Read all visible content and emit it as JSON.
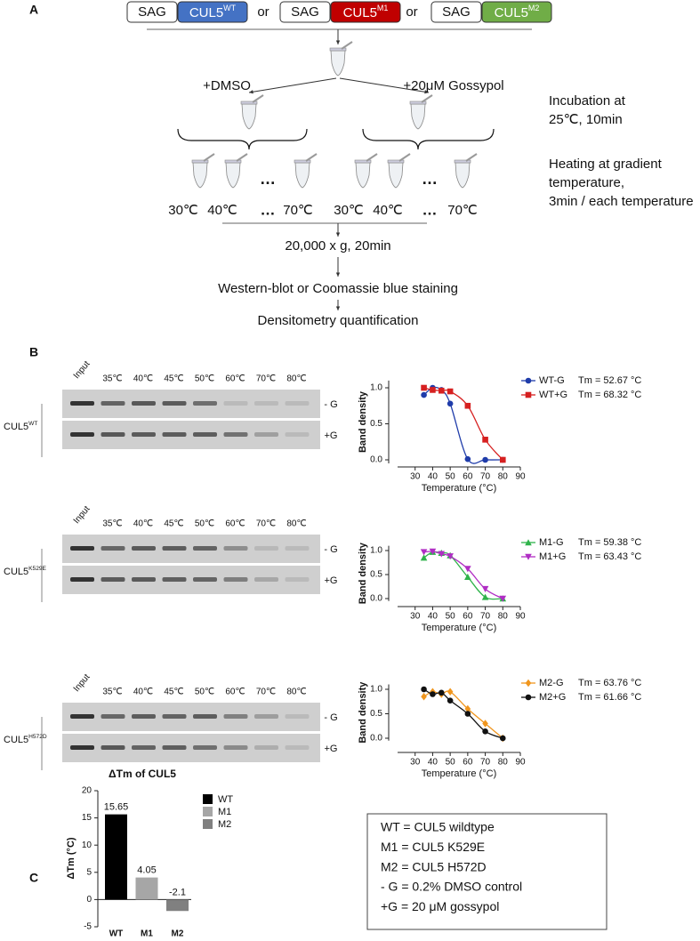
{
  "panel_a": {
    "label": "A",
    "constructs": [
      {
        "tag": "SAG",
        "name": "CUL5",
        "variant": "WT",
        "color": "#4472c4"
      },
      {
        "tag": "SAG",
        "name": "CUL5",
        "variant": "M1",
        "color": "#c00000"
      },
      {
        "tag": "SAG",
        "name": "CUL5",
        "variant": "M2",
        "color": "#70ad47"
      }
    ],
    "separators": [
      "or",
      "or"
    ],
    "conditions": [
      "+DMSO",
      "+20μM Gossypol"
    ],
    "tube_gaps": [
      "…",
      "…"
    ],
    "temperatures": [
      [
        "30℃",
        "40℃",
        "…",
        "70℃"
      ],
      [
        "30℃",
        "40℃",
        "…",
        "70℃"
      ]
    ],
    "steps": [
      "20,000 x g, 20min",
      "Western-blot or Coomassie blue staining",
      "Densitometry quantification"
    ],
    "notes": [
      [
        "Incubation at",
        "25℃, 10min"
      ],
      [
        "Heating at gradient",
        "temperature,",
        "3min / each temperature"
      ]
    ]
  },
  "panel_b": {
    "label": "B",
    "gels": [
      {
        "name": "CUL5",
        "variant": "WT",
        "lanes": [
          "Input",
          "35℃",
          "40℃",
          "45℃",
          "50℃",
          "60℃",
          "70℃",
          "80℃"
        ],
        "rows": [
          "- G",
          "+G"
        ]
      },
      {
        "name": "CUL5",
        "variant": "K529E",
        "lanes": [
          "Input",
          "35℃",
          "40℃",
          "45℃",
          "50℃",
          "60℃",
          "70℃",
          "80℃"
        ],
        "rows": [
          "- G",
          "+G"
        ]
      },
      {
        "name": "CUL5",
        "variant": "H572D",
        "lanes": [
          "Input",
          "35℃",
          "40℃",
          "45℃",
          "50℃",
          "60℃",
          "70℃",
          "80℃"
        ],
        "rows": [
          "- G",
          "+G"
        ]
      }
    ]
  },
  "chart_data": [
    {
      "type": "scatter",
      "curve": "smooth",
      "x_label": "Temperature (°C)",
      "y_label": "Band density",
      "xlim": [
        20,
        90
      ],
      "xticks": [
        30,
        40,
        50,
        60,
        70,
        80,
        90
      ],
      "ylim": [
        -0.05,
        1.1
      ],
      "yticks": [
        {
          "value": 0,
          "label": "0.0"
        },
        {
          "value": 0.5,
          "label": "0.5"
        },
        {
          "value": 1,
          "label": "1.0"
        }
      ],
      "x": [
        35,
        40,
        45,
        50,
        60,
        70,
        80
      ],
      "series": [
        {
          "name": "WT-G",
          "tm_label": "Tm = 52.67 °C",
          "color": "#1f3caa",
          "marker": "circle",
          "values": [
            0.9,
            1.0,
            0.97,
            0.78,
            0.01,
            0.0,
            0.0
          ]
        },
        {
          "name": "WT+G",
          "tm_label": "Tm = 68.32 °C",
          "color": "#d62020",
          "marker": "square",
          "values": [
            1.0,
            0.97,
            0.96,
            0.95,
            0.75,
            0.28,
            0.0
          ]
        }
      ]
    },
    {
      "type": "scatter",
      "curve": "smooth",
      "x_label": "Temperature (°C)",
      "y_label": "Band density",
      "xlim": [
        20,
        90
      ],
      "xticks": [
        30,
        40,
        50,
        60,
        70,
        80,
        90
      ],
      "ylim": [
        -0.05,
        1.1
      ],
      "yticks": [
        {
          "value": 0,
          "label": "0.0"
        },
        {
          "value": 0.5,
          "label": "0.5"
        },
        {
          "value": 1,
          "label": "1.0"
        }
      ],
      "x": [
        35,
        40,
        45,
        50,
        60,
        70,
        80
      ],
      "series": [
        {
          "name": "M1-G",
          "tm_label": "Tm = 59.38 °C",
          "color": "#2fb34a",
          "marker": "triangle",
          "values": [
            0.85,
            0.97,
            0.95,
            0.9,
            0.45,
            0.03,
            0.0
          ]
        },
        {
          "name": "M1+G",
          "tm_label": "Tm = 63.43 °C",
          "color": "#b02ec4",
          "marker": "triangle-down",
          "values": [
            0.97,
            0.98,
            0.93,
            0.88,
            0.62,
            0.2,
            0.0
          ]
        }
      ]
    },
    {
      "type": "scatter",
      "curve": "smooth",
      "x_label": "Temperature (°C)",
      "y_label": "Band density",
      "xlim": [
        20,
        90
      ],
      "xticks": [
        30,
        40,
        50,
        60,
        70,
        80,
        90
      ],
      "ylim": [
        -0.05,
        1.1
      ],
      "yticks": [
        {
          "value": 0,
          "label": "0.0"
        },
        {
          "value": 0.5,
          "label": "0.5"
        },
        {
          "value": 1,
          "label": "1.0"
        }
      ],
      "x": [
        35,
        40,
        45,
        50,
        60,
        70,
        80
      ],
      "series": [
        {
          "name": "M2-G",
          "tm_label": "Tm = 63.76 °C",
          "color": "#f0961e",
          "marker": "diamond",
          "values": [
            0.85,
            0.95,
            0.9,
            0.95,
            0.6,
            0.3,
            0.0
          ]
        },
        {
          "name": "M2+G",
          "tm_label": "Tm = 61.66 °C",
          "color": "#111111",
          "marker": "circle",
          "values": [
            1.0,
            0.9,
            0.93,
            0.77,
            0.5,
            0.14,
            0.0
          ]
        }
      ]
    },
    {
      "type": "bar",
      "title": "ΔTm of CUL5",
      "y_label": "ΔTm (°C)",
      "categories": [
        "WT",
        "M1",
        "M2"
      ],
      "values": [
        15.65,
        4.05,
        -2.1
      ],
      "colors": [
        "#000000",
        "#a6a6a6",
        "#808080"
      ],
      "ylim": [
        -5,
        20
      ],
      "yticks": [
        -5,
        0,
        5,
        10,
        15,
        20
      ]
    }
  ],
  "panel_c": {
    "label": "C",
    "key": [
      "WT = CUL5 wildtype",
      "M1 = CUL5 K529E",
      "M2 = CUL5 H572D",
      "- G = 0.2% DMSO control",
      "+G = 20 μM gossypol"
    ]
  }
}
